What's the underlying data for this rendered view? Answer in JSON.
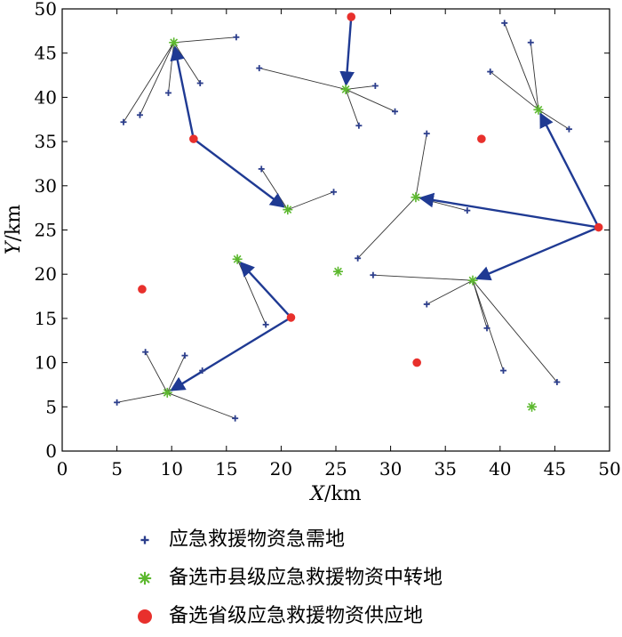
{
  "chart_data": {
    "type": "scatter",
    "title": "",
    "xlabel": {
      "var": "X",
      "unit": "/km"
    },
    "ylabel": {
      "var": "Y",
      "unit": "/km"
    },
    "xlim": [
      0,
      50
    ],
    "ylim": [
      0,
      50
    ],
    "xticks": [
      0,
      5,
      10,
      15,
      20,
      25,
      30,
      35,
      40,
      45,
      50
    ],
    "yticks": [
      0,
      5,
      10,
      15,
      20,
      25,
      30,
      35,
      40,
      45,
      50
    ],
    "grid": false,
    "legend_position": "bottom",
    "colors": {
      "demand": "#2c3e8c",
      "transfer": "#5cb82e",
      "supply": "#e8302c",
      "link": "#333333",
      "arrow": "#1f3a93"
    },
    "series": [
      {
        "name": "应急救援物资急需地",
        "marker": "plus",
        "points": [
          [
            15.9,
            46.8
          ],
          [
            12.6,
            41.6
          ],
          [
            9.7,
            40.5
          ],
          [
            7.1,
            38
          ],
          [
            5.6,
            37.2
          ],
          [
            18,
            43.3
          ],
          [
            28.6,
            41.3
          ],
          [
            30.4,
            38.4
          ],
          [
            27.1,
            36.8
          ],
          [
            40.4,
            48.4
          ],
          [
            42.8,
            46.2
          ],
          [
            39.1,
            42.9
          ],
          [
            46.3,
            36.4
          ],
          [
            18.2,
            31.9
          ],
          [
            24.8,
            29.3
          ],
          [
            33.3,
            35.9
          ],
          [
            37,
            27.2
          ],
          [
            27,
            21.8
          ],
          [
            28.4,
            19.9
          ],
          [
            33.3,
            16.6
          ],
          [
            38.8,
            13.9
          ],
          [
            40.3,
            9.1
          ],
          [
            45.2,
            7.8
          ],
          [
            18.6,
            14.3
          ],
          [
            7.6,
            11.2
          ],
          [
            11.2,
            10.8
          ],
          [
            12.8,
            9.1
          ],
          [
            5,
            5.5
          ],
          [
            15.8,
            3.7
          ]
        ]
      },
      {
        "name": "备选市县级应急救援物资中转地",
        "marker": "asterisk",
        "points": [
          [
            10.2,
            46.2
          ],
          [
            25.9,
            40.9
          ],
          [
            43.5,
            38.6
          ],
          [
            20.6,
            27.3
          ],
          [
            32.3,
            28.7
          ],
          [
            25.2,
            20.3
          ],
          [
            37.5,
            19.3
          ],
          [
            16,
            21.7
          ],
          [
            9.6,
            6.6
          ],
          [
            42.9,
            5
          ]
        ]
      },
      {
        "name": "备选省级应急救援物资供应地",
        "marker": "dot",
        "points": [
          [
            26.4,
            49.1
          ],
          [
            12,
            35.3
          ],
          [
            38.3,
            35.3
          ],
          [
            49,
            25.3
          ],
          [
            7.3,
            18.3
          ],
          [
            20.9,
            15.1
          ],
          [
            32.4,
            10
          ]
        ]
      }
    ],
    "links": [
      {
        "from": [
          10.2,
          46.2
        ],
        "to": [
          15.9,
          46.8
        ]
      },
      {
        "from": [
          10.2,
          46.2
        ],
        "to": [
          12.6,
          41.6
        ]
      },
      {
        "from": [
          10.2,
          46.2
        ],
        "to": [
          9.7,
          40.5
        ]
      },
      {
        "from": [
          10.2,
          46.2
        ],
        "to": [
          7.1,
          38
        ]
      },
      {
        "from": [
          10.2,
          46.2
        ],
        "to": [
          5.6,
          37.2
        ]
      },
      {
        "from": [
          25.9,
          40.9
        ],
        "to": [
          18,
          43.3
        ]
      },
      {
        "from": [
          25.9,
          40.9
        ],
        "to": [
          28.6,
          41.3
        ]
      },
      {
        "from": [
          25.9,
          40.9
        ],
        "to": [
          30.4,
          38.4
        ]
      },
      {
        "from": [
          25.9,
          40.9
        ],
        "to": [
          27.1,
          36.8
        ]
      },
      {
        "from": [
          43.5,
          38.6
        ],
        "to": [
          40.4,
          48.4
        ]
      },
      {
        "from": [
          43.5,
          38.6
        ],
        "to": [
          42.8,
          46.2
        ]
      },
      {
        "from": [
          43.5,
          38.6
        ],
        "to": [
          39.1,
          42.9
        ]
      },
      {
        "from": [
          43.5,
          38.6
        ],
        "to": [
          46.3,
          36.4
        ]
      },
      {
        "from": [
          20.6,
          27.3
        ],
        "to": [
          18.2,
          31.9
        ]
      },
      {
        "from": [
          20.6,
          27.3
        ],
        "to": [
          24.8,
          29.3
        ]
      },
      {
        "from": [
          32.3,
          28.7
        ],
        "to": [
          33.3,
          35.9
        ]
      },
      {
        "from": [
          32.3,
          28.7
        ],
        "to": [
          37,
          27.2
        ]
      },
      {
        "from": [
          32.3,
          28.7
        ],
        "to": [
          27,
          21.8
        ]
      },
      {
        "from": [
          37.5,
          19.3
        ],
        "to": [
          28.4,
          19.9
        ]
      },
      {
        "from": [
          37.5,
          19.3
        ],
        "to": [
          33.3,
          16.6
        ]
      },
      {
        "from": [
          37.5,
          19.3
        ],
        "to": [
          38.8,
          13.9
        ]
      },
      {
        "from": [
          37.5,
          19.3
        ],
        "to": [
          40.3,
          9.1
        ]
      },
      {
        "from": [
          37.5,
          19.3
        ],
        "to": [
          45.2,
          7.8
        ]
      },
      {
        "from": [
          16,
          21.7
        ],
        "to": [
          18.6,
          14.3
        ]
      },
      {
        "from": [
          9.6,
          6.6
        ],
        "to": [
          7.6,
          11.2
        ]
      },
      {
        "from": [
          9.6,
          6.6
        ],
        "to": [
          11.2,
          10.8
        ]
      },
      {
        "from": [
          9.6,
          6.6
        ],
        "to": [
          12.8,
          9.1
        ]
      },
      {
        "from": [
          9.6,
          6.6
        ],
        "to": [
          5,
          5.5
        ]
      },
      {
        "from": [
          9.6,
          6.6
        ],
        "to": [
          15.8,
          3.7
        ]
      }
    ],
    "arrows": [
      {
        "from": [
          26.4,
          49.1
        ],
        "to": [
          25.9,
          40.9
        ]
      },
      {
        "from": [
          12,
          35.3
        ],
        "to": [
          10.2,
          46.2
        ]
      },
      {
        "from": [
          12,
          35.3
        ],
        "to": [
          20.6,
          27.3
        ]
      },
      {
        "from": [
          49,
          25.3
        ],
        "to": [
          43.5,
          38.6
        ]
      },
      {
        "from": [
          49,
          25.3
        ],
        "to": [
          32.3,
          28.7
        ]
      },
      {
        "from": [
          49,
          25.3
        ],
        "to": [
          37.5,
          19.3
        ]
      },
      {
        "from": [
          20.9,
          15.1
        ],
        "to": [
          16,
          21.7
        ]
      },
      {
        "from": [
          20.9,
          15.1
        ],
        "to": [
          9.6,
          6.6
        ]
      }
    ]
  }
}
